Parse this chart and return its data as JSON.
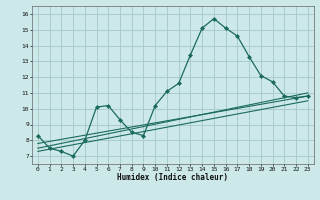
{
  "xlabel": "Humidex (Indice chaleur)",
  "bg_color": "#cce8e8",
  "grid_color": "#aacccc",
  "line_color": "#1a6b5a",
  "xlim": [
    -0.5,
    23.5
  ],
  "ylim": [
    6.5,
    16.5
  ],
  "yticks": [
    7,
    8,
    9,
    10,
    11,
    12,
    13,
    14,
    15,
    16
  ],
  "xticks": [
    0,
    1,
    2,
    3,
    4,
    5,
    6,
    7,
    8,
    9,
    10,
    11,
    12,
    13,
    14,
    15,
    16,
    17,
    18,
    19,
    20,
    21,
    22,
    23
  ],
  "series1_x": [
    0,
    1,
    2,
    3,
    4,
    5,
    6,
    7,
    8,
    9,
    10,
    11,
    12,
    13,
    14,
    15,
    16,
    17,
    18,
    19,
    20,
    21,
    22,
    23
  ],
  "series1_y": [
    8.3,
    7.5,
    7.3,
    7.0,
    8.0,
    10.1,
    10.2,
    9.3,
    8.5,
    8.3,
    10.2,
    11.1,
    11.6,
    13.4,
    15.1,
    15.7,
    15.1,
    14.6,
    13.3,
    12.1,
    11.7,
    10.8,
    10.7,
    10.8
  ],
  "series2_x": [
    0,
    23
  ],
  "series2_y": [
    7.8,
    10.8
  ],
  "series3_x": [
    0,
    23
  ],
  "series3_y": [
    7.5,
    11.0
  ],
  "series4_x": [
    0,
    23
  ],
  "series4_y": [
    7.3,
    10.5
  ]
}
